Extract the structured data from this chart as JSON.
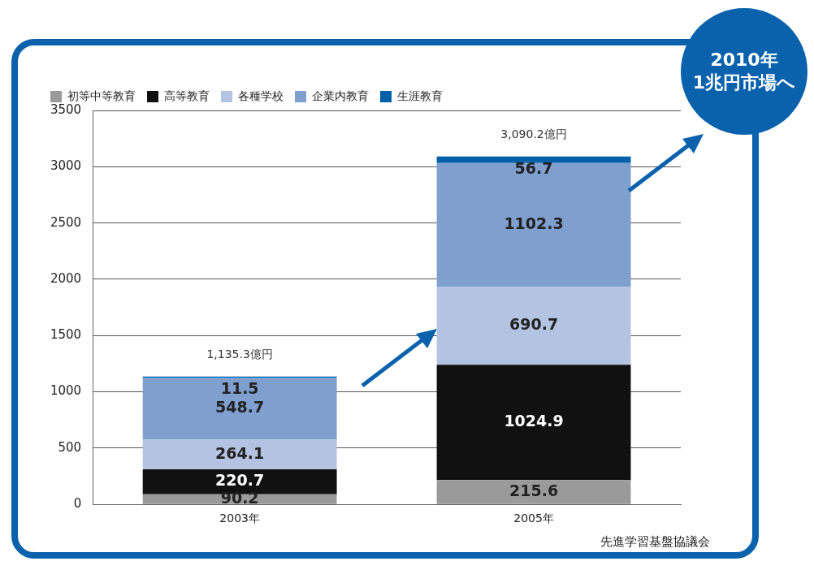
{
  "chart_data": {
    "type": "bar",
    "stacked": true,
    "categories": [
      "2003年",
      "2005年"
    ],
    "series": [
      {
        "name": "初等中等教育",
        "color": "#9a9a9a",
        "values": [
          90.2,
          215.6
        ]
      },
      {
        "name": "高等教育",
        "color": "#111111",
        "values": [
          220.7,
          1024.9
        ]
      },
      {
        "name": "各種学校",
        "color": "#b4c3e2",
        "values": [
          264.1,
          690.7
        ]
      },
      {
        "name": "企業内教育",
        "color": "#7f9fcf",
        "values": [
          548.7,
          1102.3
        ]
      },
      {
        "name": "生涯教育",
        "color": "#0060a8",
        "values": [
          11.5,
          56.7
        ]
      }
    ],
    "ylim": [
      0,
      3500
    ],
    "yticks": [
      0,
      500,
      1000,
      1500,
      2000,
      2500,
      3000,
      3500
    ],
    "grid": "y",
    "legend": "top",
    "data_labels": true,
    "totals": [
      "1,135.3億円",
      "3,090.2億円"
    ],
    "annotations": [
      "2010年\n1兆円市場へ",
      "先進学習基盤協議会"
    ]
  }
}
